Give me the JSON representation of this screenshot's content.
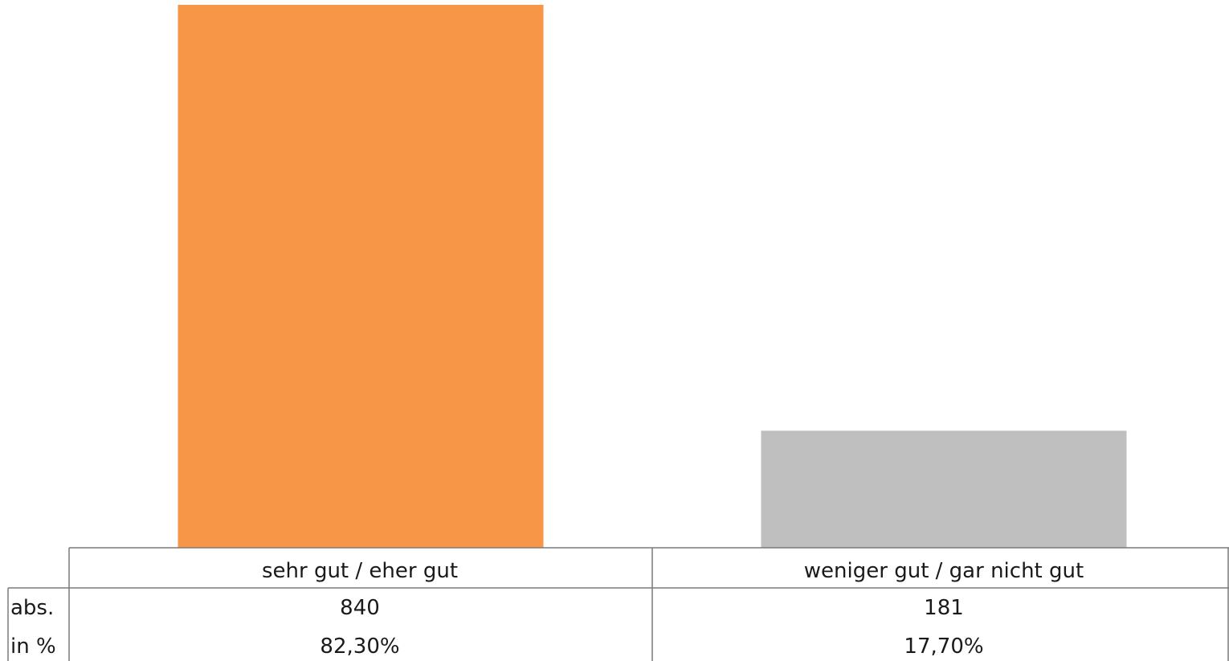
{
  "chart_data": {
    "type": "bar",
    "title": "",
    "xlabel": "",
    "ylabel": "",
    "ylim": [
      0,
      840
    ],
    "categories": [
      "sehr gut / eher gut",
      "weniger gut / gar nicht gut"
    ],
    "values": [
      840,
      181
    ],
    "colors": [
      "#F79646",
      "#BFBFBF"
    ],
    "table": {
      "row_headers": [
        "abs.",
        "in %"
      ],
      "rows": [
        [
          "840",
          "181"
        ],
        [
          "82,30%",
          "17,70%"
        ]
      ]
    }
  }
}
